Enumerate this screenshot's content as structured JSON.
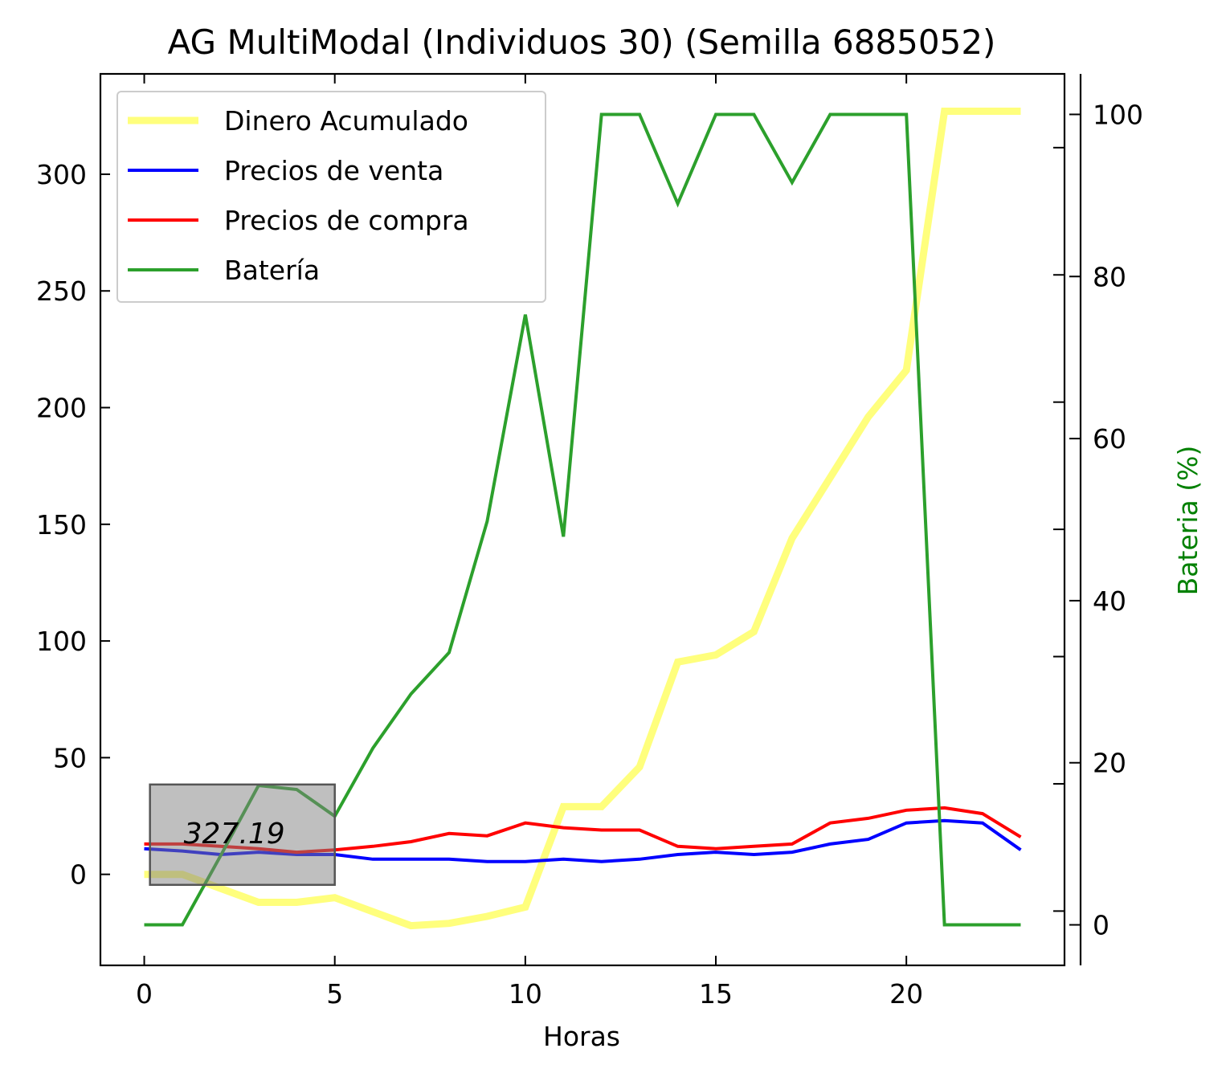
{
  "chart_data": {
    "type": "line",
    "title": "AG MultiModal (Individuos 30) (Semilla 6885052)",
    "xlabel": "Horas",
    "ylabel": "",
    "y2label": "Bateria (%)",
    "y2label_color": "#008000",
    "xlim": [
      -1.15,
      24.15
    ],
    "ylim": [
      -39,
      343
    ],
    "y2lim": [
      -5,
      105
    ],
    "xticks": [
      0,
      5,
      10,
      15,
      20
    ],
    "yticks": [
      0,
      50,
      100,
      150,
      200,
      250,
      300
    ],
    "y2ticks": [
      0,
      20,
      40,
      60,
      80,
      100
    ],
    "y2_minor_ticks": [
      1.7,
      17.4,
      33.1,
      48.8,
      64.5,
      80.2,
      95.9
    ],
    "grid": false,
    "legend_position": "upper-left",
    "x": [
      0,
      1,
      2,
      3,
      4,
      5,
      6,
      7,
      8,
      9,
      10,
      11,
      12,
      13,
      14,
      15,
      16,
      17,
      18,
      19,
      20,
      21,
      22,
      23
    ],
    "series": [
      {
        "name": "Dinero Acumulado",
        "color": "#ffff66",
        "axis": "left",
        "values": [
          0,
          0,
          -6,
          -12,
          -12,
          -10,
          -16,
          -22,
          -21,
          -18,
          -14,
          29,
          29,
          46,
          91,
          94,
          104,
          144,
          170,
          196,
          216,
          327,
          327,
          327
        ]
      },
      {
        "name": "Precios de venta",
        "color": "#0000ff",
        "axis": "left",
        "values": [
          11,
          10,
          8.5,
          9.5,
          8.5,
          8.5,
          6.5,
          6.5,
          6.5,
          5.5,
          5.5,
          6.5,
          5.5,
          6.5,
          8.5,
          9.5,
          8.5,
          9.5,
          13,
          15,
          22,
          23,
          22,
          10.5
        ]
      },
      {
        "name": "Precios de compra",
        "color": "#ff0000",
        "axis": "left",
        "values": [
          13,
          13,
          12,
          11,
          9.5,
          10.5,
          12,
          14,
          17.5,
          16.5,
          22,
          20,
          19,
          19,
          12,
          11,
          12,
          13,
          22,
          24,
          27.5,
          28.5,
          26,
          16
        ]
      },
      {
        "name": "Batería",
        "color": "#2ca02c",
        "axis": "right",
        "values": [
          0,
          0,
          8.5,
          17.2,
          16.7,
          13.4,
          21.8,
          28.5,
          33.6,
          49.8,
          75.3,
          47.9,
          100,
          100,
          89,
          100,
          100,
          91.6,
          100,
          100,
          100,
          0,
          0,
          0
        ]
      }
    ],
    "annotation": {
      "text": "327.19",
      "box_x": [
        0.15,
        5.0
      ],
      "box_y": [
        -4.5,
        38.5
      ]
    }
  }
}
